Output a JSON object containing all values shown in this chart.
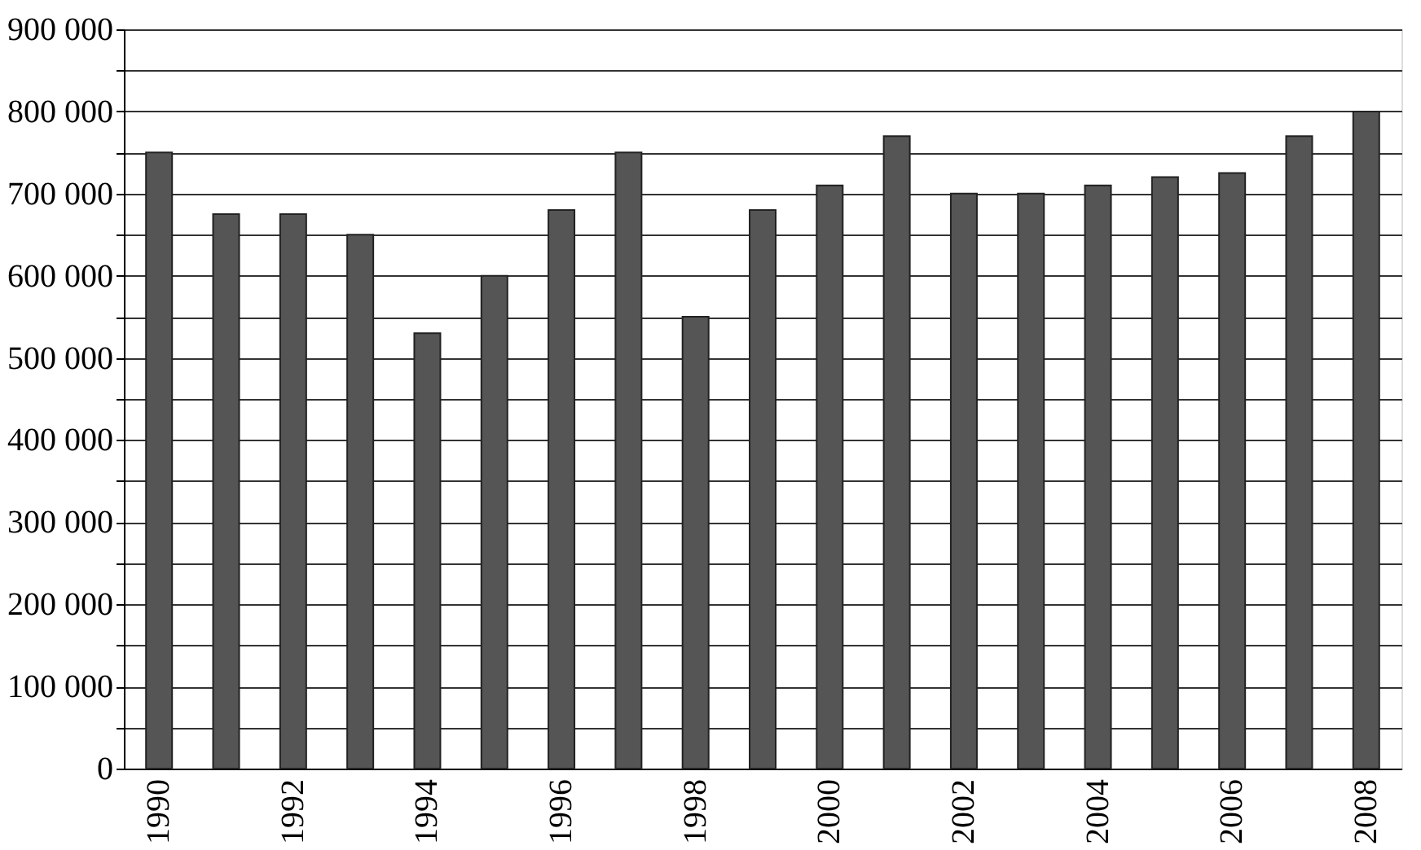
{
  "chart_data": {
    "type": "bar",
    "categories": [
      "1990",
      null,
      "1992",
      null,
      "1994",
      null,
      "1996",
      null,
      "1998",
      null,
      "2000",
      null,
      "2002",
      null,
      "2004",
      null,
      "2006",
      null,
      "2008"
    ],
    "values": [
      750000,
      675000,
      675000,
      650000,
      530000,
      600000,
      680000,
      750000,
      550000,
      680000,
      710000,
      770000,
      700000,
      700000,
      710000,
      720000,
      725000,
      770000,
      800000
    ],
    "color": "#555555",
    "ylim": [
      0,
      900000
    ],
    "yticks": [
      0,
      {
        "value": 50000,
        "label": null
      },
      {
        "value": 100000,
        "label": "100 000"
      },
      {
        "value": 150000,
        "label": null
      },
      {
        "value": 200000,
        "label": "200 000"
      },
      {
        "value": 250000,
        "label": null
      },
      {
        "value": 300000,
        "label": "300 000"
      },
      {
        "value": 350000,
        "label": null
      },
      {
        "value": 400000,
        "label": "400 000"
      },
      {
        "value": 450000,
        "label": null
      },
      {
        "value": 500000,
        "label": "500 000"
      },
      {
        "value": 550000,
        "label": null
      },
      {
        "value": 600000,
        "label": "600 000"
      },
      {
        "value": 650000,
        "label": null
      },
      {
        "value": 700000,
        "label": "700 000"
      },
      {
        "value": 750000,
        "label": null
      },
      {
        "value": 800000,
        "label": "800 000"
      },
      {
        "value": 850000,
        "label": null
      },
      {
        "value": 900000,
        "label": "900 000"
      }
    ],
    "grid": true
  }
}
